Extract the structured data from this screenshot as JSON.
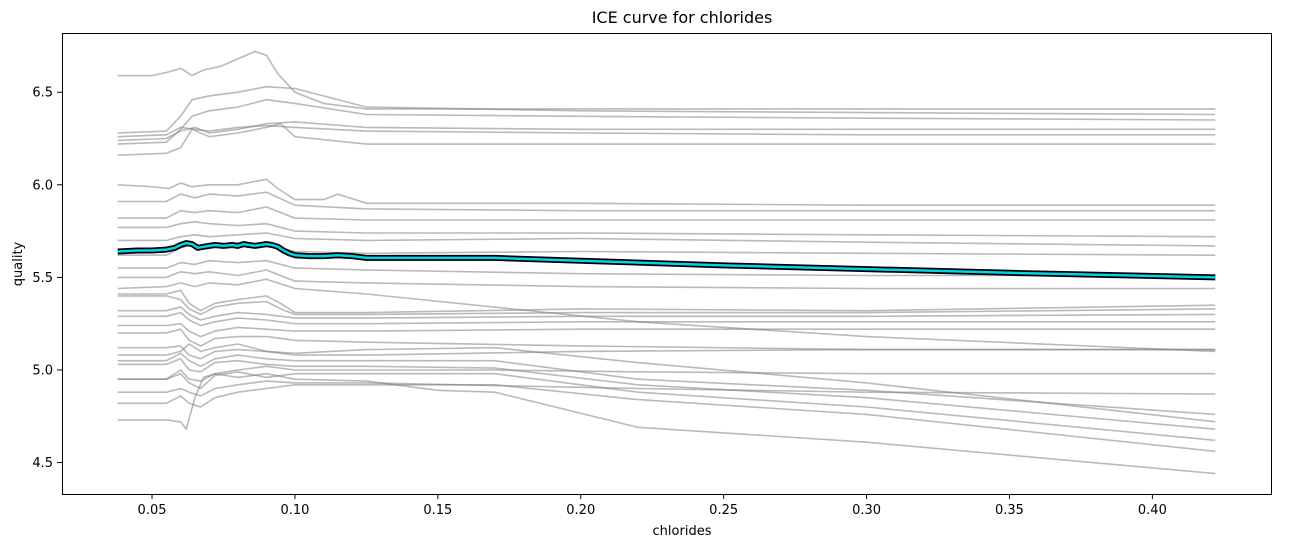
{
  "chart_data": {
    "type": "line",
    "title": "ICE curve for chlorides",
    "xlabel": "chlorides",
    "ylabel": "quality",
    "xlim": [
      0.0185,
      0.4415
    ],
    "ylim": [
      4.33,
      6.82
    ],
    "xticks": [
      {
        "value": 0.05,
        "label": "0.05"
      },
      {
        "value": 0.1,
        "label": "0.10"
      },
      {
        "value": 0.15,
        "label": "0.15"
      },
      {
        "value": 0.2,
        "label": "0.20"
      },
      {
        "value": 0.25,
        "label": "0.25"
      },
      {
        "value": 0.3,
        "label": "0.30"
      },
      {
        "value": 0.35,
        "label": "0.35"
      },
      {
        "value": 0.4,
        "label": "0.40"
      }
    ],
    "yticks": [
      {
        "value": 4.5,
        "label": "4.5"
      },
      {
        "value": 5.0,
        "label": "5.0"
      },
      {
        "value": 5.5,
        "label": "5.5"
      },
      {
        "value": 6.0,
        "label": "6.0"
      },
      {
        "value": 6.5,
        "label": "6.5"
      }
    ],
    "grid": false,
    "ice_color": "#808080",
    "average_color": "#00d4e8",
    "average_outline_color": "#000000",
    "ice_curves": [
      {
        "x": [
          0.038,
          0.05,
          0.056,
          0.06,
          0.064,
          0.068,
          0.074,
          0.08,
          0.086,
          0.09,
          0.094,
          0.1,
          0.11,
          0.125,
          0.2,
          0.3,
          0.422
        ],
        "y": [
          6.59,
          6.59,
          6.61,
          6.63,
          6.59,
          6.62,
          6.64,
          6.68,
          6.72,
          6.7,
          6.6,
          6.5,
          6.44,
          6.41,
          6.41,
          6.41,
          6.41
        ]
      },
      {
        "x": [
          0.038,
          0.055,
          0.06,
          0.064,
          0.07,
          0.08,
          0.09,
          0.1,
          0.11,
          0.125,
          0.2,
          0.3,
          0.422
        ],
        "y": [
          6.28,
          6.29,
          6.37,
          6.46,
          6.48,
          6.5,
          6.53,
          6.52,
          6.48,
          6.42,
          6.4,
          6.39,
          6.38
        ]
      },
      {
        "x": [
          0.038,
          0.055,
          0.06,
          0.064,
          0.07,
          0.08,
          0.09,
          0.1,
          0.125,
          0.2,
          0.3,
          0.422
        ],
        "y": [
          6.22,
          6.23,
          6.3,
          6.37,
          6.4,
          6.42,
          6.46,
          6.44,
          6.38,
          6.37,
          6.36,
          6.35
        ]
      },
      {
        "x": [
          0.038,
          0.055,
          0.06,
          0.065,
          0.07,
          0.08,
          0.09,
          0.1,
          0.125,
          0.2,
          0.3,
          0.422
        ],
        "y": [
          6.24,
          6.25,
          6.29,
          6.31,
          6.28,
          6.3,
          6.33,
          6.34,
          6.31,
          6.3,
          6.3,
          6.3
        ]
      },
      {
        "x": [
          0.038,
          0.055,
          0.06,
          0.065,
          0.07,
          0.08,
          0.09,
          0.1,
          0.125,
          0.2,
          0.3,
          0.422
        ],
        "y": [
          6.26,
          6.27,
          6.31,
          6.3,
          6.29,
          6.31,
          6.32,
          6.31,
          6.29,
          6.28,
          6.27,
          6.27
        ]
      },
      {
        "x": [
          0.038,
          0.055,
          0.06,
          0.064,
          0.07,
          0.08,
          0.09,
          0.095,
          0.1,
          0.125,
          0.2,
          0.3,
          0.422
        ],
        "y": [
          6.16,
          6.17,
          6.2,
          6.3,
          6.26,
          6.28,
          6.31,
          6.33,
          6.26,
          6.22,
          6.22,
          6.22,
          6.22
        ]
      },
      {
        "x": [
          0.038,
          0.05,
          0.056,
          0.06,
          0.064,
          0.07,
          0.08,
          0.09,
          0.094,
          0.1,
          0.11,
          0.115,
          0.125,
          0.2,
          0.3,
          0.422
        ],
        "y": [
          6.0,
          5.99,
          5.98,
          6.01,
          5.99,
          6.0,
          6.0,
          6.03,
          5.98,
          5.92,
          5.92,
          5.95,
          5.9,
          5.9,
          5.89,
          5.89
        ]
      },
      {
        "x": [
          0.038,
          0.055,
          0.06,
          0.065,
          0.07,
          0.08,
          0.09,
          0.1,
          0.125,
          0.2,
          0.3,
          0.422
        ],
        "y": [
          5.91,
          5.91,
          5.95,
          5.93,
          5.95,
          5.94,
          5.96,
          5.89,
          5.87,
          5.86,
          5.86,
          5.86
        ]
      },
      {
        "x": [
          0.038,
          0.055,
          0.06,
          0.065,
          0.07,
          0.08,
          0.09,
          0.1,
          0.125,
          0.2,
          0.3,
          0.422
        ],
        "y": [
          5.82,
          5.82,
          5.86,
          5.85,
          5.86,
          5.85,
          5.88,
          5.82,
          5.81,
          5.81,
          5.81,
          5.81
        ]
      },
      {
        "x": [
          0.038,
          0.055,
          0.06,
          0.065,
          0.07,
          0.08,
          0.09,
          0.1,
          0.125,
          0.2,
          0.3,
          0.422
        ],
        "y": [
          5.77,
          5.77,
          5.79,
          5.8,
          5.79,
          5.78,
          5.79,
          5.75,
          5.74,
          5.74,
          5.73,
          5.72
        ]
      },
      {
        "x": [
          0.038,
          0.055,
          0.06,
          0.065,
          0.07,
          0.08,
          0.09,
          0.1,
          0.125,
          0.2,
          0.3,
          0.422
        ],
        "y": [
          5.7,
          5.7,
          5.72,
          5.73,
          5.72,
          5.73,
          5.74,
          5.71,
          5.7,
          5.71,
          5.69,
          5.67
        ]
      },
      {
        "x": [
          0.038,
          0.055,
          0.06,
          0.065,
          0.07,
          0.08,
          0.09,
          0.1,
          0.125,
          0.2,
          0.3,
          0.422
        ],
        "y": [
          5.62,
          5.62,
          5.66,
          5.68,
          5.66,
          5.67,
          5.68,
          5.64,
          5.63,
          5.64,
          5.63,
          5.62
        ]
      },
      {
        "x": [
          0.038,
          0.055,
          0.06,
          0.065,
          0.07,
          0.08,
          0.09,
          0.1,
          0.125,
          0.2,
          0.3,
          0.422
        ],
        "y": [
          5.55,
          5.55,
          5.58,
          5.57,
          5.59,
          5.58,
          5.59,
          5.55,
          5.54,
          5.52,
          5.51,
          5.51
        ]
      },
      {
        "x": [
          0.038,
          0.055,
          0.06,
          0.065,
          0.07,
          0.08,
          0.09,
          0.1,
          0.125,
          0.2,
          0.3,
          0.422
        ],
        "y": [
          5.5,
          5.5,
          5.53,
          5.52,
          5.53,
          5.51,
          5.54,
          5.48,
          5.47,
          5.45,
          5.44,
          5.44
        ]
      },
      {
        "x": [
          0.038,
          0.055,
          0.06,
          0.065,
          0.07,
          0.08,
          0.09,
          0.1,
          0.125,
          0.22,
          0.3,
          0.422
        ],
        "y": [
          5.44,
          5.45,
          5.47,
          5.45,
          5.47,
          5.46,
          5.49,
          5.44,
          5.41,
          5.26,
          5.18,
          5.1
        ]
      },
      {
        "x": [
          0.038,
          0.055,
          0.06,
          0.063,
          0.067,
          0.072,
          0.08,
          0.09,
          0.095,
          0.1,
          0.125,
          0.2,
          0.3,
          0.422
        ],
        "y": [
          5.41,
          5.41,
          5.43,
          5.36,
          5.32,
          5.36,
          5.38,
          5.4,
          5.36,
          5.31,
          5.31,
          5.33,
          5.32,
          5.35
        ]
      },
      {
        "x": [
          0.038,
          0.055,
          0.06,
          0.063,
          0.067,
          0.072,
          0.08,
          0.09,
          0.095,
          0.1,
          0.125,
          0.2,
          0.3,
          0.422
        ],
        "y": [
          5.4,
          5.4,
          5.38,
          5.33,
          5.3,
          5.34,
          5.36,
          5.37,
          5.33,
          5.3,
          5.3,
          5.31,
          5.31,
          5.33
        ]
      },
      {
        "x": [
          0.038,
          0.055,
          0.06,
          0.063,
          0.067,
          0.072,
          0.08,
          0.09,
          0.1,
          0.125,
          0.2,
          0.3,
          0.422
        ],
        "y": [
          5.32,
          5.32,
          5.34,
          5.3,
          5.27,
          5.29,
          5.31,
          5.3,
          5.28,
          5.28,
          5.29,
          5.29,
          5.3
        ]
      },
      {
        "x": [
          0.038,
          0.055,
          0.06,
          0.063,
          0.067,
          0.072,
          0.08,
          0.09,
          0.1,
          0.125,
          0.2,
          0.3,
          0.422
        ],
        "y": [
          5.29,
          5.29,
          5.31,
          5.27,
          5.24,
          5.26,
          5.28,
          5.27,
          5.25,
          5.25,
          5.26,
          5.26,
          5.26
        ]
      },
      {
        "x": [
          0.038,
          0.055,
          0.06,
          0.063,
          0.067,
          0.072,
          0.08,
          0.09,
          0.1,
          0.125,
          0.2,
          0.3,
          0.422
        ],
        "y": [
          5.24,
          5.24,
          5.25,
          5.21,
          5.18,
          5.21,
          5.23,
          5.22,
          5.21,
          5.21,
          5.22,
          5.22,
          5.22
        ]
      },
      {
        "x": [
          0.038,
          0.055,
          0.06,
          0.063,
          0.067,
          0.072,
          0.08,
          0.09,
          0.1,
          0.125,
          0.2,
          0.3,
          0.422
        ],
        "y": [
          5.2,
          5.2,
          5.22,
          5.16,
          5.13,
          5.17,
          5.18,
          5.18,
          5.16,
          5.15,
          5.13,
          5.11,
          5.11
        ]
      },
      {
        "x": [
          0.038,
          0.055,
          0.06,
          0.063,
          0.067,
          0.072,
          0.08,
          0.09,
          0.1,
          0.125,
          0.2,
          0.3,
          0.422
        ],
        "y": [
          5.12,
          5.12,
          5.13,
          5.08,
          5.06,
          5.1,
          5.11,
          5.1,
          5.08,
          5.08,
          5.1,
          5.11,
          5.11
        ]
      },
      {
        "x": [
          0.038,
          0.055,
          0.06,
          0.063,
          0.067,
          0.072,
          0.08,
          0.09,
          0.1,
          0.125,
          0.17,
          0.22,
          0.3,
          0.422
        ],
        "y": [
          5.08,
          5.08,
          5.1,
          5.14,
          5.1,
          5.12,
          5.14,
          5.1,
          5.09,
          5.11,
          5.12,
          5.04,
          4.93,
          4.72
        ]
      },
      {
        "x": [
          0.038,
          0.055,
          0.06,
          0.063,
          0.067,
          0.072,
          0.08,
          0.09,
          0.1,
          0.125,
          0.17,
          0.22,
          0.3,
          0.422
        ],
        "y": [
          5.05,
          5.05,
          5.09,
          5.05,
          5.02,
          5.06,
          5.08,
          5.06,
          5.05,
          5.05,
          5.05,
          4.95,
          4.89,
          4.76
        ]
      },
      {
        "x": [
          0.038,
          0.055,
          0.06,
          0.063,
          0.067,
          0.072,
          0.08,
          0.09,
          0.1,
          0.125,
          0.17,
          0.22,
          0.3,
          0.422
        ],
        "y": [
          5.03,
          5.03,
          5.06,
          5.0,
          4.99,
          5.04,
          5.05,
          5.03,
          5.02,
          5.02,
          5.01,
          4.92,
          4.85,
          4.68
        ]
      },
      {
        "x": [
          0.038,
          0.055,
          0.06,
          0.063,
          0.067,
          0.072,
          0.08,
          0.09,
          0.1,
          0.125,
          0.17,
          0.22,
          0.3,
          0.422
        ],
        "y": [
          4.95,
          4.95,
          4.98,
          4.93,
          4.9,
          4.97,
          4.99,
          4.96,
          4.98,
          4.98,
          4.98,
          4.88,
          4.8,
          4.62
        ]
      },
      {
        "x": [
          0.038,
          0.055,
          0.06,
          0.063,
          0.067,
          0.072,
          0.08,
          0.09,
          0.1,
          0.125,
          0.17,
          0.22,
          0.3,
          0.422
        ],
        "y": [
          4.95,
          4.95,
          5.0,
          4.95,
          4.94,
          4.98,
          5.0,
          5.02,
          5.0,
          5.0,
          5.0,
          4.99,
          4.98,
          4.98
        ]
      },
      {
        "x": [
          0.038,
          0.055,
          0.06,
          0.063,
          0.067,
          0.072,
          0.08,
          0.09,
          0.1,
          0.125,
          0.22,
          0.3,
          0.422
        ],
        "y": [
          4.88,
          4.88,
          4.9,
          4.88,
          4.86,
          4.9,
          4.92,
          4.94,
          4.93,
          4.93,
          4.9,
          4.88,
          4.87
        ]
      },
      {
        "x": [
          0.038,
          0.055,
          0.06,
          0.063,
          0.067,
          0.072,
          0.08,
          0.09,
          0.1,
          0.125,
          0.17,
          0.22,
          0.3,
          0.422
        ],
        "y": [
          4.82,
          4.82,
          4.86,
          4.82,
          4.8,
          4.85,
          4.88,
          4.9,
          4.92,
          4.92,
          4.92,
          4.84,
          4.76,
          4.56
        ]
      },
      {
        "x": [
          0.038,
          0.055,
          0.06,
          0.062,
          0.065,
          0.068,
          0.072,
          0.08,
          0.09,
          0.1,
          0.125,
          0.15,
          0.17,
          0.22,
          0.3,
          0.422
        ],
        "y": [
          4.73,
          4.73,
          4.72,
          4.68,
          4.85,
          4.96,
          4.98,
          4.96,
          4.98,
          4.95,
          4.94,
          4.89,
          4.88,
          4.69,
          4.61,
          4.44
        ]
      }
    ],
    "series": [
      {
        "x": [
          0.038,
          0.045,
          0.05,
          0.055,
          0.058,
          0.06,
          0.062,
          0.064,
          0.066,
          0.068,
          0.07,
          0.072,
          0.075,
          0.078,
          0.08,
          0.082,
          0.084,
          0.086,
          0.088,
          0.09,
          0.092,
          0.094,
          0.096,
          0.098,
          0.1,
          0.105,
          0.11,
          0.115,
          0.12,
          0.125,
          0.15,
          0.17,
          0.2,
          0.25,
          0.3,
          0.35,
          0.422
        ],
        "y": [
          5.64,
          5.645,
          5.645,
          5.65,
          5.66,
          5.675,
          5.685,
          5.68,
          5.66,
          5.665,
          5.67,
          5.675,
          5.67,
          5.675,
          5.67,
          5.68,
          5.675,
          5.67,
          5.675,
          5.68,
          5.675,
          5.665,
          5.645,
          5.63,
          5.62,
          5.615,
          5.615,
          5.62,
          5.615,
          5.605,
          5.605,
          5.605,
          5.59,
          5.565,
          5.545,
          5.525,
          5.5
        ]
      }
    ]
  }
}
